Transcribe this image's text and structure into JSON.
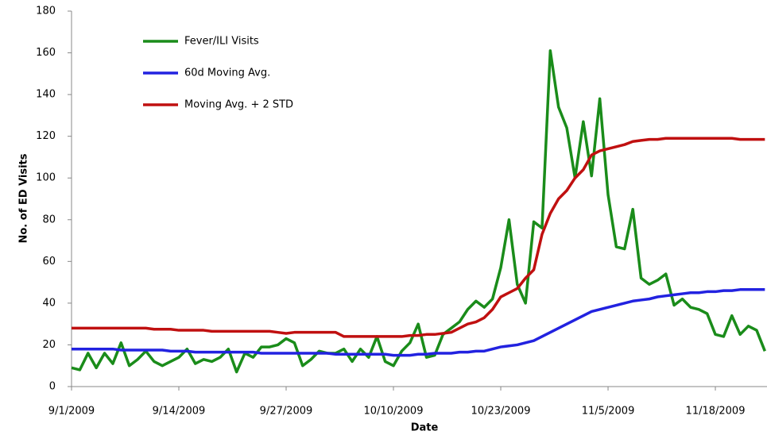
{
  "chart_data": {
    "type": "line",
    "x_label": "Date",
    "y_label": "No. of ED Visits",
    "x": [
      "9/1/2009",
      "9/2/2009",
      "9/3/2009",
      "9/4/2009",
      "9/5/2009",
      "9/6/2009",
      "9/7/2009",
      "9/8/2009",
      "9/9/2009",
      "9/10/2009",
      "9/11/2009",
      "9/12/2009",
      "9/13/2009",
      "9/14/2009",
      "9/15/2009",
      "9/16/2009",
      "9/17/2009",
      "9/18/2009",
      "9/19/2009",
      "9/20/2009",
      "9/21/2009",
      "9/22/2009",
      "9/23/2009",
      "9/24/2009",
      "9/25/2009",
      "9/26/2009",
      "9/27/2009",
      "9/28/2009",
      "9/29/2009",
      "9/30/2009",
      "10/1/2009",
      "10/2/2009",
      "10/3/2009",
      "10/4/2009",
      "10/5/2009",
      "10/6/2009",
      "10/7/2009",
      "10/8/2009",
      "10/9/2009",
      "10/10/2009",
      "10/11/2009",
      "10/12/2009",
      "10/13/2009",
      "10/14/2009",
      "10/15/2009",
      "10/16/2009",
      "10/17/2009",
      "10/18/2009",
      "10/19/2009",
      "10/20/2009",
      "10/21/2009",
      "10/22/2009",
      "10/23/2009",
      "10/24/2009",
      "10/25/2009",
      "10/26/2009",
      "10/27/2009",
      "10/28/2009",
      "10/29/2009",
      "10/30/2009",
      "10/31/2009",
      "11/1/2009",
      "11/2/2009",
      "11/3/2009",
      "11/4/2009",
      "11/5/2009",
      "11/6/2009",
      "11/7/2009",
      "11/8/2009",
      "11/9/2009",
      "11/10/2009",
      "11/11/2009",
      "11/12/2009",
      "11/13/2009",
      "11/14/2009",
      "11/15/2009",
      "11/16/2009",
      "11/17/2009",
      "11/18/2009",
      "11/19/2009",
      "11/20/2009",
      "11/21/2009",
      "11/22/2009",
      "11/23/2009",
      "11/24/2009"
    ],
    "series": [
      {
        "name": "Fever/ILI Visits",
        "color": "#1a8c1a",
        "values": [
          9,
          8,
          16,
          9,
          16,
          11,
          21,
          10,
          13,
          17,
          12,
          10,
          12,
          14,
          18,
          11,
          13,
          12,
          14,
          18,
          7,
          16,
          14,
          19,
          19,
          20,
          23,
          21,
          10,
          13,
          17,
          16,
          16,
          18,
          12,
          18,
          14,
          24,
          12,
          10,
          17,
          21,
          30,
          14,
          15,
          25,
          28,
          31,
          37,
          41,
          38,
          42,
          57,
          80,
          49,
          40,
          79,
          76,
          161,
          134,
          124,
          100,
          127,
          101,
          138,
          92,
          67,
          66,
          85,
          52,
          49,
          51,
          54,
          39,
          42,
          38,
          37,
          35,
          25,
          24,
          34,
          25,
          29,
          27,
          17
        ]
      },
      {
        "name": "60d Moving Avg.",
        "color": "#2222e0",
        "values": [
          18,
          18,
          18,
          18,
          18,
          18,
          17.5,
          17.5,
          17.5,
          17.5,
          17.5,
          17.5,
          17,
          17,
          17,
          16.5,
          16.5,
          16.5,
          16.5,
          16.5,
          16.5,
          16.5,
          16.5,
          16,
          16,
          16,
          16,
          16,
          16,
          16,
          16,
          16,
          15.5,
          15.5,
          15.5,
          15.5,
          15.5,
          15.5,
          15.5,
          15,
          15,
          15,
          15.5,
          15.5,
          16,
          16,
          16,
          16.5,
          16.5,
          17,
          17,
          18,
          19,
          19.5,
          20,
          21,
          22,
          24,
          26,
          28,
          30,
          32,
          34,
          36,
          37,
          38,
          39,
          40,
          41,
          41.5,
          42,
          43,
          43.5,
          44,
          44.5,
          45,
          45,
          45.5,
          45.5,
          46,
          46,
          46.5,
          46.5,
          46.5,
          46.5
        ]
      },
      {
        "name": "Moving Avg. + 2 STD",
        "color": "#c01010",
        "values": [
          28,
          28,
          28,
          28,
          28,
          28,
          28,
          28,
          28,
          28,
          27.5,
          27.5,
          27.5,
          27,
          27,
          27,
          27,
          26.5,
          26.5,
          26.5,
          26.5,
          26.5,
          26.5,
          26.5,
          26.5,
          26,
          25.5,
          26,
          26,
          26,
          26,
          26,
          26,
          24,
          24,
          24,
          24,
          24,
          24,
          24,
          24,
          24.5,
          24.5,
          25,
          25,
          25.5,
          26,
          28,
          30,
          31,
          33,
          37,
          43,
          45,
          47,
          52,
          56,
          73,
          83,
          90,
          94,
          100,
          104,
          111,
          113,
          114,
          115,
          116,
          117.5,
          118,
          118.5,
          118.5,
          119,
          119,
          119,
          119,
          119,
          119,
          119,
          119,
          119,
          118.5,
          118.5,
          118.5,
          118.5
        ]
      }
    ],
    "xticks": [
      "9/1/2009",
      "9/14/2009",
      "9/27/2009",
      "10/10/2009",
      "10/23/2009",
      "11/5/2009",
      "11/18/2009"
    ],
    "ylim": [
      0,
      180
    ],
    "yticks": [
      0,
      20,
      40,
      60,
      80,
      100,
      120,
      140,
      160,
      180
    ],
    "grid": false
  }
}
